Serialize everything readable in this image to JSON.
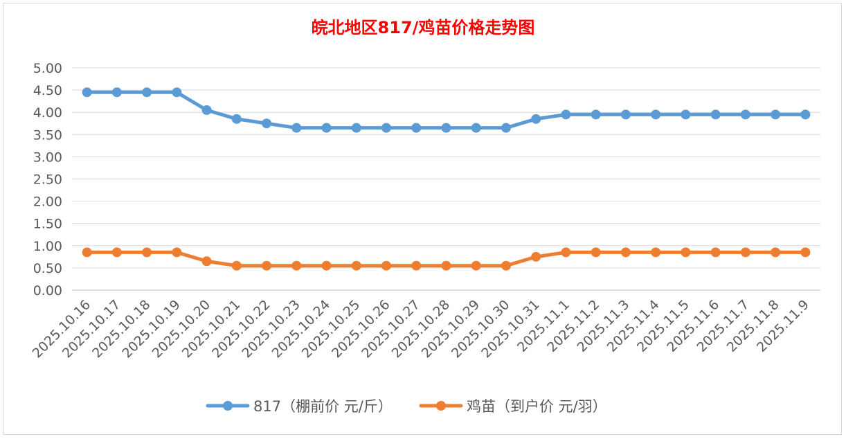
{
  "chart_data": {
    "type": "line",
    "title": "皖北地区817/鸡苗价格走势图",
    "title_color": "#ff0000",
    "categories": [
      "2025.10.16",
      "2025.10.17",
      "2025.10.18",
      "2025.10.19",
      "2025.10.20",
      "2025.10.21",
      "2025.10.22",
      "2025.10.23",
      "2025.10.24",
      "2025.10.25",
      "2025.10.26",
      "2025.10.27",
      "2025.10.28",
      "2025.10.29",
      "2025.10.30",
      "2025.10.31",
      "2025.11.1",
      "2025.11.2",
      "2025.11.3",
      "2025.11.4",
      "2025.11.5",
      "2025.11.6",
      "2025.11.7",
      "2025.11.8",
      "2025.11.9"
    ],
    "series": [
      {
        "name": "817（棚前价 元/斤）",
        "color": "#5b9bd5",
        "values": [
          4.45,
          4.45,
          4.45,
          4.45,
          4.05,
          3.85,
          3.75,
          3.65,
          3.65,
          3.65,
          3.65,
          3.65,
          3.65,
          3.65,
          3.65,
          3.85,
          3.95,
          3.95,
          3.95,
          3.95,
          3.95,
          3.95,
          3.95,
          3.95,
          3.95
        ]
      },
      {
        "name": "鸡苗（到户价 元/羽）",
        "color": "#ed7d31",
        "values": [
          0.85,
          0.85,
          0.85,
          0.85,
          0.65,
          0.55,
          0.55,
          0.55,
          0.55,
          0.55,
          0.55,
          0.55,
          0.55,
          0.55,
          0.55,
          0.75,
          0.85,
          0.85,
          0.85,
          0.85,
          0.85,
          0.85,
          0.85,
          0.85,
          0.85
        ]
      }
    ],
    "ylim": [
      0,
      5
    ],
    "yticks": [
      "0.00",
      "0.50",
      "1.00",
      "1.50",
      "2.00",
      "2.50",
      "3.00",
      "3.50",
      "4.00",
      "4.50",
      "5.00"
    ],
    "xlabel": "",
    "ylabel": "",
    "grid": true,
    "legend_position": "bottom"
  }
}
